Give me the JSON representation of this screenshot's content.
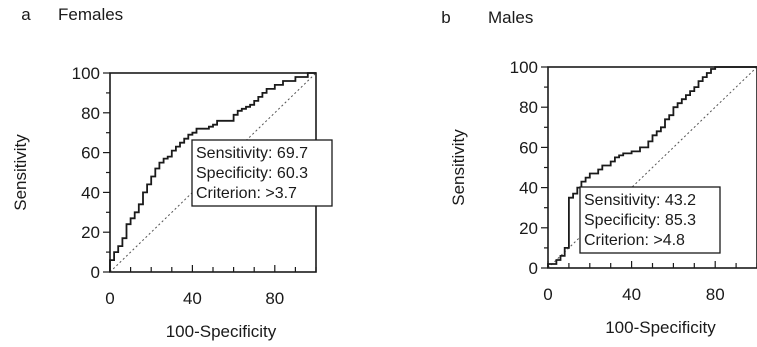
{
  "chart_data": [
    {
      "type": "line",
      "panel_letter": "a",
      "title": "Females",
      "xlabel": "100-Specificity",
      "ylabel": "Sensitivity",
      "xlim": [
        0,
        100
      ],
      "ylim": [
        0,
        100
      ],
      "x_ticks": [
        0,
        40,
        80
      ],
      "y_ticks": [
        0,
        20,
        40,
        60,
        80,
        100
      ],
      "grid": false,
      "reference_line": true,
      "annotation": [
        "Sensitivity: 69.7",
        "Specificity: 60.3",
        "Criterion: >3.7"
      ],
      "series": [
        {
          "x": [
            0,
            0,
            2,
            2,
            4,
            4,
            6,
            6,
            8,
            8,
            10,
            10,
            12,
            12,
            14,
            14,
            16,
            16,
            18,
            18,
            20,
            20,
            22,
            22,
            24,
            24,
            26,
            26,
            28,
            28,
            30,
            30,
            32,
            32,
            34,
            34,
            36,
            36,
            38,
            38,
            40,
            40,
            42,
            42,
            44,
            44,
            46,
            46,
            48,
            48,
            50,
            50,
            52,
            52,
            56,
            56,
            60,
            60,
            62,
            62,
            64,
            64,
            66,
            66,
            68,
            68,
            70,
            70,
            72,
            72,
            74,
            74,
            76,
            76,
            80,
            80,
            84,
            84,
            90,
            90,
            96,
            96,
            100
          ],
          "y": [
            0,
            6,
            6,
            10,
            10,
            13,
            13,
            17,
            17,
            24,
            24,
            27,
            27,
            30,
            30,
            34,
            34,
            40,
            40,
            44,
            44,
            48,
            48,
            52,
            52,
            55,
            55,
            57,
            57,
            58,
            58,
            61,
            61,
            63,
            63,
            65,
            65,
            67,
            67,
            69,
            69,
            70,
            70,
            72,
            72,
            72,
            72,
            72,
            72,
            73,
            73,
            74,
            74,
            76,
            76,
            76,
            76,
            79,
            79,
            81,
            81,
            82,
            82,
            83,
            83,
            84,
            84,
            86,
            86,
            88,
            88,
            90,
            90,
            92,
            92,
            94,
            94,
            96,
            96,
            98,
            98,
            100,
            100
          ]
        }
      ]
    },
    {
      "type": "line",
      "panel_letter": "b",
      "title": "Males",
      "xlabel": "100-Specificity",
      "ylabel": "Sensitivity",
      "xlim": [
        0,
        100
      ],
      "ylim": [
        0,
        100
      ],
      "x_ticks": [
        0,
        40,
        80
      ],
      "y_ticks": [
        0,
        20,
        40,
        60,
        80,
        100
      ],
      "grid": false,
      "reference_line": true,
      "annotation": [
        "Sensitivity: 43.2",
        "Specificity: 85.3",
        "Criterion: >4.8"
      ],
      "series": [
        {
          "x": [
            0,
            0,
            2,
            2,
            4,
            4,
            6,
            6,
            8,
            8,
            10,
            10,
            12,
            12,
            14,
            14,
            16,
            16,
            18,
            18,
            20,
            20,
            24,
            24,
            26,
            26,
            30,
            30,
            32,
            32,
            34,
            34,
            36,
            36,
            40,
            40,
            44,
            44,
            48,
            48,
            50,
            50,
            52,
            52,
            54,
            54,
            56,
            56,
            58,
            58,
            60,
            60,
            62,
            62,
            64,
            64,
            66,
            66,
            68,
            68,
            70,
            70,
            72,
            72,
            74,
            74,
            76,
            76,
            78,
            78,
            80,
            80,
            82,
            82,
            100
          ],
          "y": [
            0,
            2,
            2,
            2,
            2,
            4,
            4,
            6,
            6,
            10,
            10,
            35,
            35,
            37,
            37,
            40,
            40,
            43,
            43,
            45,
            45,
            47,
            47,
            49,
            49,
            51,
            51,
            53,
            53,
            55,
            55,
            56,
            56,
            57,
            57,
            58,
            58,
            60,
            60,
            63,
            63,
            66,
            66,
            68,
            68,
            70,
            70,
            74,
            74,
            76,
            76,
            80,
            80,
            82,
            82,
            84,
            84,
            86,
            86,
            88,
            88,
            90,
            90,
            93,
            93,
            95,
            95,
            97,
            97,
            99,
            99,
            100,
            100,
            100,
            100
          ]
        }
      ]
    }
  ]
}
